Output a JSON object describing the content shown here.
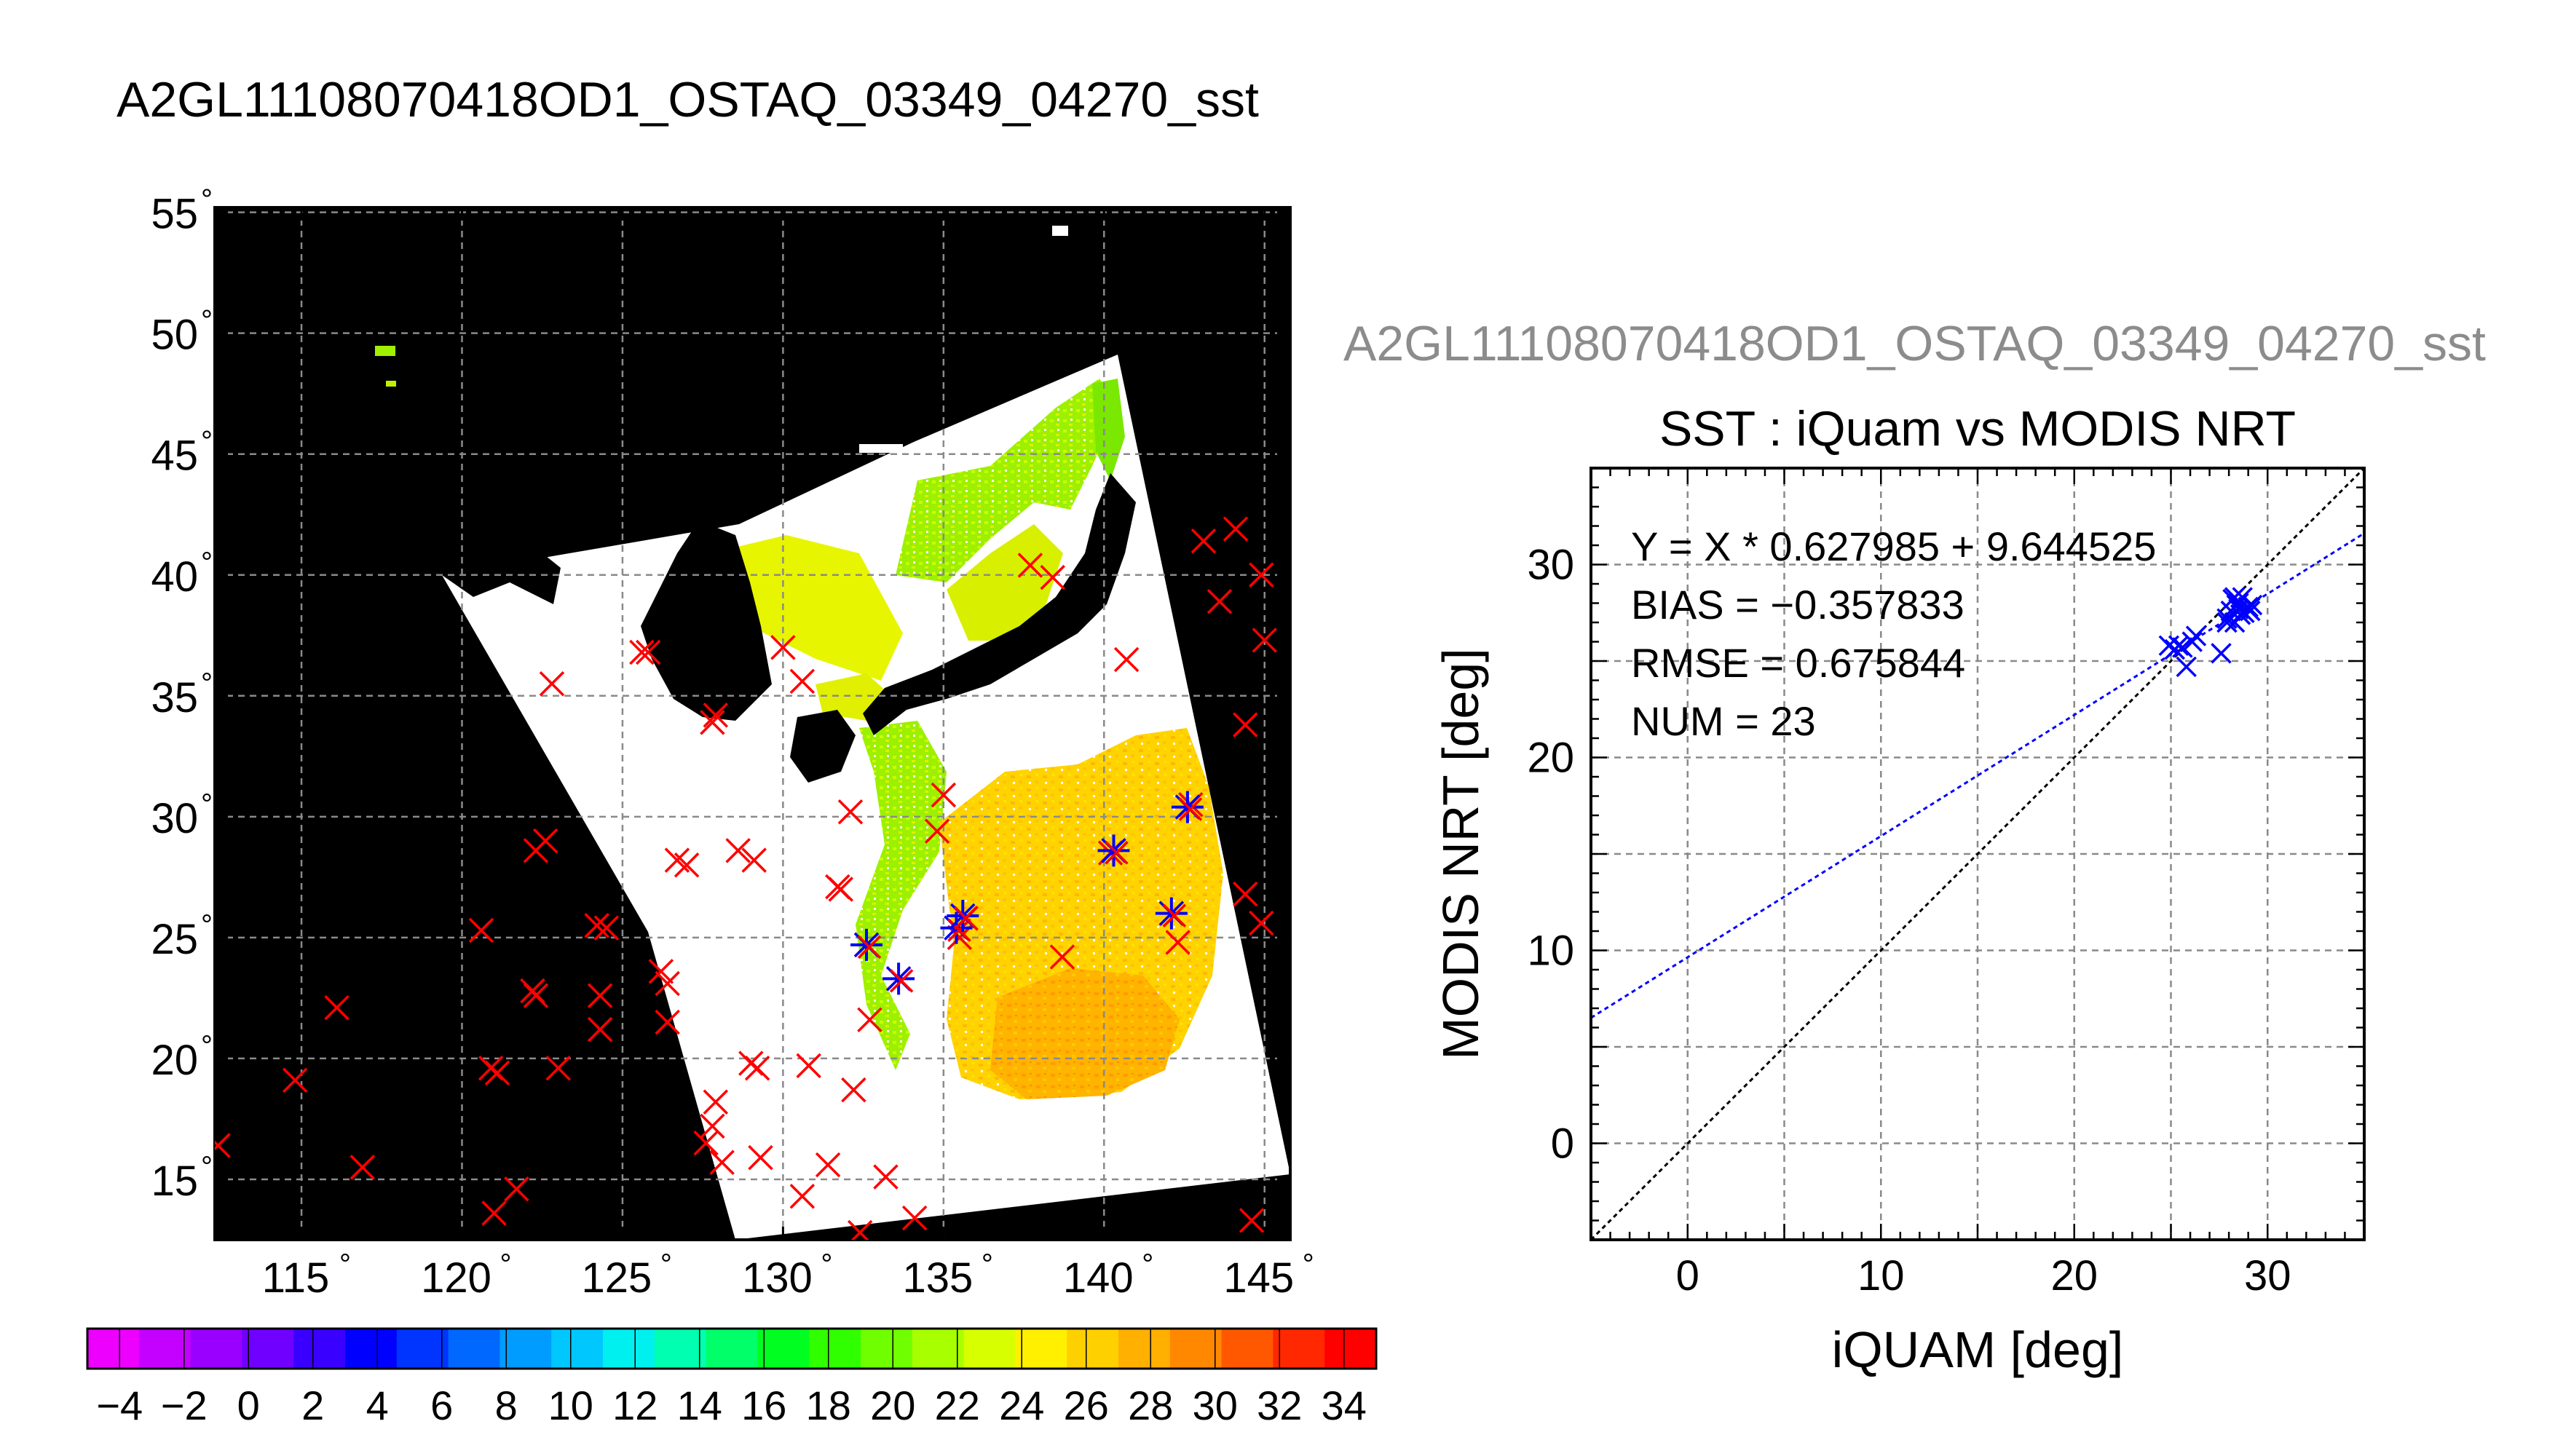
{
  "map_panel": {
    "title": "A2GL11108070418OD1_OSTAQ_03349_04270_sst",
    "lat_ticks": [
      55,
      50,
      45,
      40,
      35,
      30,
      25,
      20,
      15
    ],
    "lon_ticks": [
      115,
      120,
      125,
      130,
      135,
      140,
      145
    ],
    "lon_range": [
      112.3,
      145.8
    ],
    "lat_range": [
      12.5,
      55.2
    ],
    "degree_symbol": "°",
    "colors": {
      "land": "#000000",
      "no_data": "#ffffff",
      "grid": "#8a8a8a"
    }
  },
  "colorbar": {
    "labels": [
      "−4",
      "−2",
      "0",
      "2",
      "4",
      "6",
      "8",
      "10",
      "12",
      "14",
      "16",
      "18",
      "20",
      "22",
      "24",
      "26",
      "28",
      "30",
      "32",
      "34"
    ],
    "range": [
      -5,
      35
    ],
    "colors": [
      "#ee00ff",
      "#c400ff",
      "#9a00ff",
      "#7000ff",
      "#3a00ff",
      "#0000ff",
      "#0034ff",
      "#0068ff",
      "#009cff",
      "#00c8ff",
      "#00f0f0",
      "#00ffb0",
      "#00ff68",
      "#00ff20",
      "#30ff00",
      "#70ff00",
      "#a8ff00",
      "#d8ff00",
      "#fff000",
      "#ffd000",
      "#ffb000",
      "#ff8800",
      "#ff5800",
      "#ff2800",
      "#ff0000"
    ]
  },
  "scatter_panel": {
    "file_title": "A2GL11108070418OD1_OSTAQ_03349_04270_sst",
    "title": "SST : iQuam vs MODIS NRT",
    "stats": [
      "Y = X * 0.627985 + 9.644525",
      "BIAS = −0.357833",
      "RMSE = 0.675844",
      "NUM = 23"
    ],
    "colors": {
      "points": "#0000ff",
      "fit_line": "#0000ff",
      "identity_line": "#000000",
      "grid": "#8a8a8a"
    }
  },
  "chart_data": [
    {
      "type": "heatmap",
      "title": "A2GL11108070418OD1_OSTAQ_03349_04270_sst",
      "xlabel": "",
      "ylabel": "",
      "xlim": [
        112.3,
        145.8
      ],
      "ylim": [
        12.5,
        55.2
      ],
      "xticks": [
        115,
        120,
        125,
        130,
        135,
        140,
        145
      ],
      "yticks": [
        15,
        20,
        25,
        30,
        35,
        40,
        45,
        50,
        55
      ],
      "grid": true,
      "colorbar_range": [
        -5,
        35
      ],
      "iquam_all_stations_red_x": [
        [
          112.4,
          16.4
        ],
        [
          114.8,
          19.1
        ],
        [
          116.1,
          22.1
        ],
        [
          116.9,
          15.5
        ],
        [
          120.6,
          25.3
        ],
        [
          120.9,
          19.6
        ],
        [
          121.0,
          13.6
        ],
        [
          121.1,
          19.4
        ],
        [
          121.7,
          14.6
        ],
        [
          122.2,
          22.8
        ],
        [
          122.3,
          22.6
        ],
        [
          122.3,
          28.6
        ],
        [
          122.6,
          29.0
        ],
        [
          122.8,
          35.5
        ],
        [
          123.0,
          19.6
        ],
        [
          124.2,
          25.5
        ],
        [
          124.3,
          22.6
        ],
        [
          124.3,
          21.2
        ],
        [
          124.5,
          25.4
        ],
        [
          125.6,
          36.8
        ],
        [
          125.8,
          36.8
        ],
        [
          126.2,
          23.6
        ],
        [
          126.4,
          23.1
        ],
        [
          126.4,
          21.5
        ],
        [
          126.7,
          28.2
        ],
        [
          127.0,
          28.0
        ],
        [
          127.8,
          33.9
        ],
        [
          127.9,
          34.2
        ],
        [
          127.9,
          18.2
        ],
        [
          127.8,
          17.2
        ],
        [
          127.6,
          16.5
        ],
        [
          128.1,
          15.7
        ],
        [
          128.6,
          28.6
        ],
        [
          129.1,
          28.2
        ],
        [
          129.0,
          19.8
        ],
        [
          129.2,
          19.6
        ],
        [
          129.3,
          15.9
        ],
        [
          130.0,
          37.0
        ],
        [
          130.6,
          35.6
        ],
        [
          130.8,
          19.7
        ],
        [
          130.6,
          14.3
        ],
        [
          131.4,
          15.6
        ],
        [
          131.7,
          27.1
        ],
        [
          131.8,
          27.0
        ],
        [
          132.1,
          30.2
        ],
        [
          132.2,
          18.7
        ],
        [
          132.6,
          24.7
        ],
        [
          132.7,
          21.6
        ],
        [
          133.2,
          15.1
        ],
        [
          132.4,
          12.8
        ],
        [
          133.6,
          23.3
        ],
        [
          134.1,
          13.4
        ],
        [
          134.8,
          29.4
        ],
        [
          135.0,
          30.9
        ],
        [
          135.5,
          25.0
        ],
        [
          135.7,
          25.8
        ],
        [
          137.7,
          40.4
        ],
        [
          138.4,
          39.9
        ],
        [
          138.7,
          24.2
        ],
        [
          140.2,
          28.5
        ],
        [
          140.7,
          36.5
        ],
        [
          142.1,
          26.0
        ],
        [
          142.3,
          24.8
        ],
        [
          142.7,
          30.5
        ],
        [
          143.1,
          41.4
        ],
        [
          143.6,
          38.9
        ],
        [
          144.1,
          41.9
        ],
        [
          144.4,
          33.8
        ],
        [
          144.4,
          26.8
        ],
        [
          144.6,
          13.3
        ],
        [
          144.9,
          40.0
        ],
        [
          145.0,
          37.3
        ],
        [
          144.9,
          25.6
        ]
      ],
      "matchups_blue_stars": [
        [
          132.6,
          24.7
        ],
        [
          133.6,
          23.3
        ],
        [
          135.4,
          25.4
        ],
        [
          135.6,
          25.9
        ],
        [
          140.3,
          28.6
        ],
        [
          142.1,
          26.0
        ],
        [
          142.6,
          30.4
        ]
      ]
    },
    {
      "type": "scatter",
      "title": "SST : iQuam vs MODIS NRT",
      "xlabel": "iQUAM [deg]",
      "ylabel": "MODIS NRT [deg]",
      "xlim": [
        -5,
        35
      ],
      "ylim": [
        -5,
        35
      ],
      "xticks": [
        0,
        10,
        20,
        30
      ],
      "yticks": [
        0,
        10,
        20,
        30
      ],
      "grid": true,
      "legend": "none",
      "series": [
        {
          "values": [
            [
              24.9,
              25.8
            ],
            [
              25.2,
              25.6
            ],
            [
              25.4,
              25.8
            ],
            [
              25.6,
              25.7
            ],
            [
              25.8,
              24.7
            ],
            [
              26.1,
              26.0
            ],
            [
              26.3,
              26.3
            ],
            [
              27.6,
              25.4
            ],
            [
              27.9,
              27.0
            ],
            [
              28.1,
              27.6
            ],
            [
              28.2,
              28.2
            ],
            [
              28.3,
              27.0
            ],
            [
              28.4,
              27.9
            ],
            [
              28.5,
              28.0
            ],
            [
              28.6,
              27.4
            ],
            [
              28.7,
              28.3
            ],
            [
              28.8,
              27.5
            ],
            [
              29.0,
              27.8
            ],
            [
              29.1,
              27.6
            ],
            [
              28.3,
              28.3
            ],
            [
              28.5,
              27.7
            ],
            [
              29.2,
              27.9
            ],
            [
              27.9,
              27.2
            ]
          ]
        }
      ],
      "fit_line": {
        "slope": 0.627985,
        "intercept": 9.644525
      },
      "identity_line": {
        "slope": 1,
        "intercept": 0
      }
    }
  ]
}
